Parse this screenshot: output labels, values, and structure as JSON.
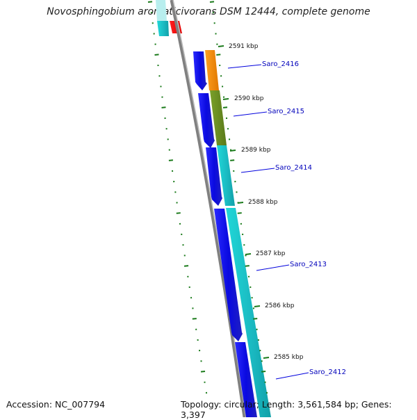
{
  "title": "Novosphingobium aromaticivorans DSM 12444, complete genome",
  "footer": {
    "accession": "Accession: NC_007794",
    "summary": "Topology: circular; Length: 3,561,584 bp; Genes: 3,397"
  },
  "colors": {
    "cds_forward": "#1010e0",
    "gene_orange": "#f08c00",
    "gene_olive": "#6b8e23",
    "gene_cyan": "#19c8c8",
    "gene_red": "#ff0000",
    "backbone": "#808080",
    "tick": "#1a7a1a",
    "label": "#0000bb"
  },
  "ticks": [
    "2591 kbp",
    "2590 kbp",
    "2589 kbp",
    "2588 kbp",
    "2587 kbp",
    "2586 kbp",
    "2585 kbp"
  ],
  "genes": [
    "Saro_2416",
    "Saro_2415",
    "Saro_2414",
    "Saro_2413",
    "Saro_2412"
  ]
}
